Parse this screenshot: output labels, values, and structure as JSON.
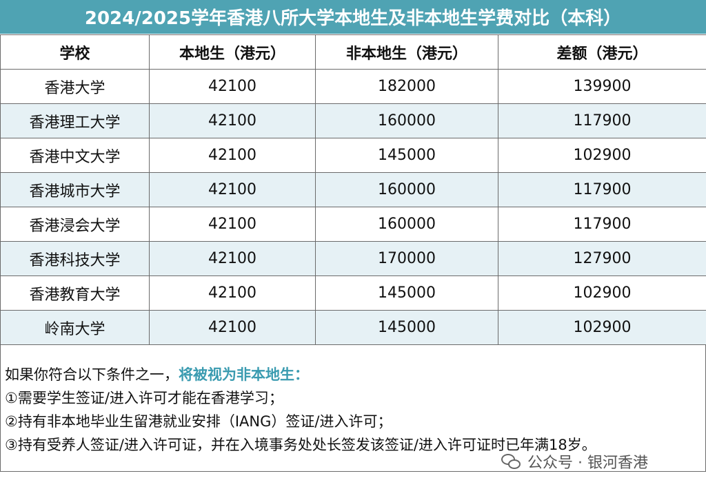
{
  "title": "2024/2025学年香港八所大学本地生及非本地生学费对比（本科）",
  "headers": [
    "学校",
    "本地生（港元）",
    "非本地生（港元）",
    "差额（港元）"
  ],
  "rows": [
    [
      "香港大学",
      "42100",
      "182000",
      "139900"
    ],
    [
      "香港理工大学",
      "42100",
      "160000",
      "117900"
    ],
    [
      "香港中文大学",
      "42100",
      "145000",
      "102900"
    ],
    [
      "香港城市大学",
      "42100",
      "160000",
      "117900"
    ],
    [
      "香港浸会大学",
      "42100",
      "160000",
      "117900"
    ],
    [
      "香港科技大学",
      "42100",
      "170000",
      "127900"
    ],
    [
      "香港教育大学",
      "42100",
      "145000",
      "102900"
    ],
    [
      "岭南大学",
      "42100",
      "145000",
      "102900"
    ]
  ],
  "notes": {
    "intro": "如果你符合以下条件之一，",
    "intro_highlight": "将被视为非本地生：",
    "items": [
      "①需要学生签证/进入许可才能在香港学习；",
      "②持有非本地毕业生留港就业安排（IANG）签证/进入许可；",
      "③持有受养人签证/进入许可证，并在入境事务处处长签发该签证/进入许可证时已年满18岁。"
    ]
  },
  "footer": {
    "icon": "wechat-icon",
    "text": "公众号 · 银河香港"
  },
  "colors": {
    "title_bg": "#4fa3b3",
    "alt_row": "#e6f1f5",
    "highlight": "#3a9bb0"
  }
}
